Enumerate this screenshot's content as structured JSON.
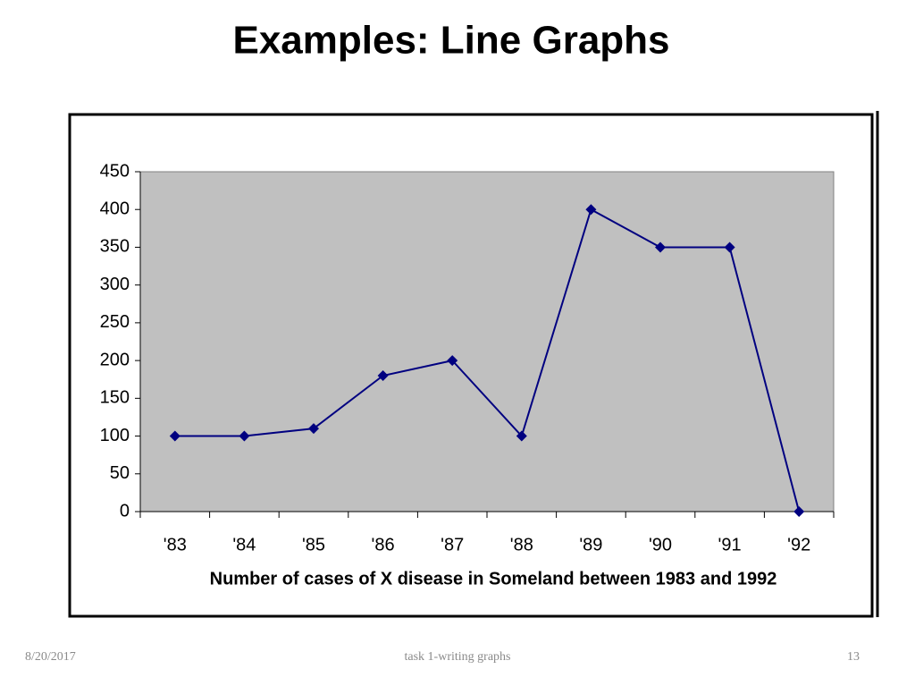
{
  "slide": {
    "title": "Examples: Line Graphs",
    "footer": {
      "date": "8/20/2017",
      "text": "task 1-writing graphs",
      "page": "13"
    }
  },
  "chart_data": {
    "type": "line",
    "x_label": "Number of cases of X disease in Someland between 1983 and 1992",
    "categories": [
      "'83",
      "'84",
      "'85",
      "'86",
      "'87",
      "'88",
      "'89",
      "'90",
      "'91",
      "'92"
    ],
    "values": [
      100,
      100,
      110,
      180,
      200,
      100,
      400,
      350,
      350,
      0
    ],
    "color": "#000080",
    "plot_background": "#c0c0c0",
    "ylim": [
      0,
      450
    ],
    "yticks": [
      0,
      50,
      100,
      150,
      200,
      250,
      300,
      350,
      400,
      450
    ]
  }
}
